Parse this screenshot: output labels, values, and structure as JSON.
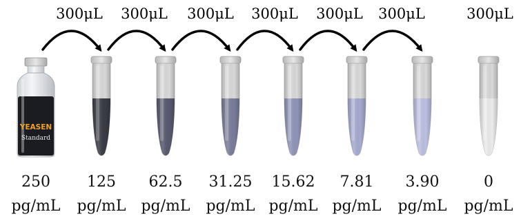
{
  "vial": {
    "brand": "YEASEN",
    "label": "Standard",
    "brand_color": "#f0a020",
    "liquid_color": "#1b1c22"
  },
  "transfers": [
    {
      "label": "300μL",
      "arrow": true
    },
    {
      "label": "300μL",
      "arrow": true
    },
    {
      "label": "300μL",
      "arrow": true
    },
    {
      "label": "300μL",
      "arrow": true
    },
    {
      "label": "300μL",
      "arrow": true
    },
    {
      "label": "300μL",
      "arrow": true
    },
    {
      "label": "300μL",
      "arrow": false
    }
  ],
  "dilutions": [
    {
      "value": "250",
      "unit": "pg/mL",
      "container": "vial"
    },
    {
      "value": "125",
      "unit": "pg/mL",
      "container": "tube",
      "color": "#3a3c45"
    },
    {
      "value": "62.5",
      "unit": "pg/mL",
      "container": "tube",
      "color": "#575a6f"
    },
    {
      "value": "31.25",
      "unit": "pg/mL",
      "container": "tube",
      "color": "#797d9a"
    },
    {
      "value": "15.62",
      "unit": "pg/mL",
      "container": "tube",
      "color": "#9095b8"
    },
    {
      "value": "7.81",
      "unit": "pg/mL",
      "container": "tube",
      "color": "#a6abd0"
    },
    {
      "value": "3.90",
      "unit": "pg/mL",
      "container": "tube",
      "color": "#bcc0e2"
    },
    {
      "value": "0",
      "unit": "pg/mL",
      "container": "tube",
      "color": "#ececec"
    }
  ]
}
